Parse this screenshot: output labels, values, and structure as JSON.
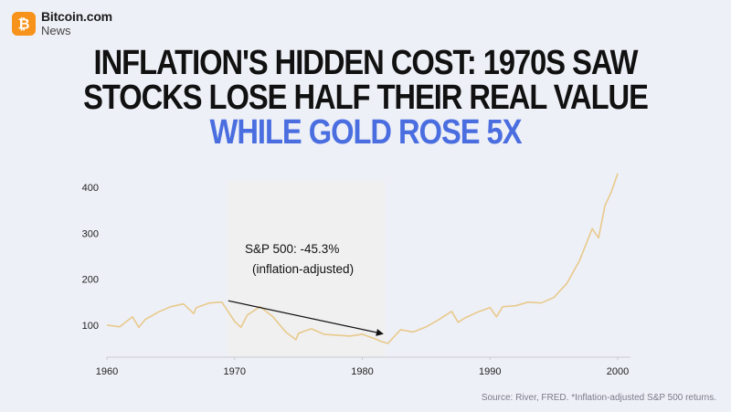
{
  "brand": {
    "name": "Bitcoin.com",
    "sub": "News",
    "icon": "bitcoin-logo-icon",
    "color": "#f7931a"
  },
  "headline": {
    "line1": "INFLATION'S HIDDEN COST: 1970S SAW",
    "line2": "STOCKS LOSE HALF THEIR REAL VALUE",
    "line3": "WHILE GOLD ROSE 5X"
  },
  "source": "Source: River, FRED. *Inflation-adjusted S&P 500 returns.",
  "chart_data": {
    "type": "line",
    "series": [
      {
        "color": "#e8c98b",
        "x": [
          1960,
          1961,
          1962,
          1962.5,
          1963,
          1964,
          1965,
          1966,
          1966.8,
          1967,
          1968,
          1969,
          1970,
          1970.5,
          1971,
          1972,
          1973,
          1974,
          1974.8,
          1975,
          1976,
          1977,
          1978,
          1979,
          1980,
          1981,
          1981.5,
          1982,
          1982.6,
          1983,
          1984,
          1985,
          1986,
          1987,
          1987.5,
          1988,
          1989,
          1990,
          1990.5,
          1991,
          1992,
          1993,
          1994,
          1995,
          1996,
          1997,
          1997.5,
          1998,
          1998.5,
          1999,
          1999.5,
          2000
        ],
        "y": [
          100,
          96,
          118,
          95,
          112,
          128,
          140,
          146,
          125,
          138,
          148,
          150,
          108,
          95,
          122,
          140,
          118,
          85,
          68,
          82,
          92,
          80,
          78,
          76,
          80,
          70,
          64,
          60,
          78,
          90,
          85,
          96,
          112,
          130,
          106,
          115,
          128,
          138,
          118,
          140,
          142,
          150,
          148,
          160,
          190,
          240,
          275,
          310,
          290,
          360,
          390,
          430
        ]
      }
    ],
    "annotation": {
      "text1": "S&P 500: -45.3%",
      "text2": "(inflation-adjusted)",
      "band": [
        1969.4,
        1981.8
      ],
      "arrow_from": [
        1969.5,
        153
      ],
      "arrow_to": [
        1981.6,
        81
      ]
    },
    "x_ticks": [
      1960,
      1970,
      1980,
      1990,
      2000
    ],
    "y_ticks": [
      100,
      200,
      300,
      400
    ],
    "xlim": [
      1960,
      2001
    ],
    "ylim": [
      30,
      450
    ],
    "grid": false,
    "band_color": "#f0f0f1",
    "axis_color": "#c8c8d2"
  }
}
